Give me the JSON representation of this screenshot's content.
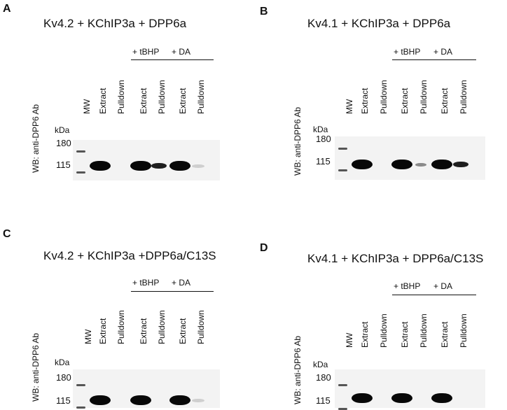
{
  "panels": [
    {
      "letter": "A",
      "title": "Kv4.2 + KChIP3a + DPP6a",
      "treatments": [
        "+ tBHP",
        "+ DA"
      ],
      "mw_label": "MW",
      "lanes": [
        "Extract",
        "Pulldown",
        "Extract",
        "Pulldown",
        "Extract",
        "Pulldown"
      ],
      "y_label": "WB: anti-DPP6 Ab",
      "kda_label": "kDa",
      "mw_values": [
        "180",
        "115"
      ],
      "band_intensity": [
        "strong",
        "none",
        "strong",
        "medium",
        "strong",
        "faint"
      ]
    },
    {
      "letter": "B",
      "title": "Kv4.1 + KChIP3a + DPP6a",
      "treatments": [
        "+ tBHP",
        "+ DA"
      ],
      "mw_label": "MW",
      "lanes": [
        "Extract",
        "Pulldown",
        "Extract",
        "Pulldown",
        "Extract",
        "Pulldown"
      ],
      "y_label": "WB: anti-DPP6 Ab",
      "kda_label": "kDa",
      "mw_values": [
        "180",
        "115"
      ],
      "band_intensity": [
        "strong",
        "none",
        "strong",
        "weak",
        "strong",
        "medium"
      ]
    },
    {
      "letter": "C",
      "title": "Kv4.2 + KChIP3a +DPP6a/C13S",
      "treatments": [
        "+ tBHP",
        "+ DA"
      ],
      "mw_label": "MW",
      "lanes": [
        "Extract",
        "Pulldown",
        "Extract",
        "Pulldown",
        "Extract",
        "Pulldown"
      ],
      "y_label": "WB: anti-DPP6 Ab",
      "kda_label": "kDa",
      "mw_values": [
        "180",
        "115"
      ],
      "band_intensity": [
        "strong",
        "none",
        "strong",
        "none",
        "strong",
        "faint"
      ]
    },
    {
      "letter": "D",
      "title": "Kv4.1 + KChIP3a + DPP6a/C13S",
      "treatments": [
        "+ tBHP",
        "+ DA"
      ],
      "mw_label": "MW",
      "lanes": [
        "Extract",
        "Pulldown",
        "Extract",
        "Pulldown",
        "Extract",
        "Pulldown"
      ],
      "y_label": "WB: anti-DPP6 Ab",
      "kda_label": "kDa",
      "mw_values": [
        "180",
        "115"
      ],
      "band_intensity": [
        "strong",
        "none",
        "strong",
        "none",
        "strong",
        "none"
      ]
    }
  ]
}
